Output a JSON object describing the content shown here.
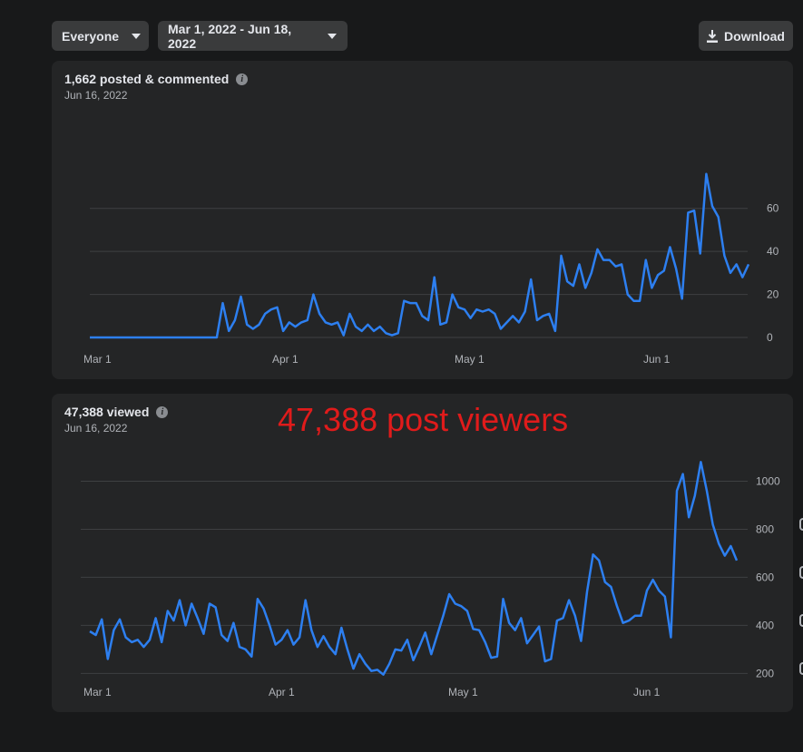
{
  "toolbar": {
    "audience": "Everyone",
    "date_range": "Mar 1, 2022 - Jun 18, 2022",
    "download_label": "Download"
  },
  "cards": [
    {
      "title": "1,662 posted & commented",
      "date": "Jun 16, 2022"
    },
    {
      "title": "47,388 viewed",
      "date": "Jun 16, 2022"
    }
  ],
  "annotation": "47,388 post viewers",
  "colors": {
    "background": "#18191a",
    "card": "#242526",
    "line": "#2d7ff0",
    "grid": "#3e4042",
    "annotation": "#e01b1b"
  },
  "chart_data": [
    {
      "type": "line",
      "title": "1,662 posted & commented",
      "x_tick_labels": [
        "Mar 1",
        "Apr 1",
        "May 1",
        "Jun 1"
      ],
      "y_ticks": [
        0,
        20,
        40,
        60
      ],
      "ylim": [
        0,
        78
      ],
      "grid": true,
      "series": [
        {
          "values": [
            0,
            0,
            0,
            0,
            0,
            0,
            0,
            0,
            0,
            0,
            0,
            0,
            0,
            0,
            0,
            0,
            0,
            0,
            0,
            0,
            0,
            0,
            16,
            3,
            8,
            19,
            6,
            4,
            6,
            11,
            13,
            14,
            3,
            7,
            5,
            7,
            8,
            20,
            11,
            7,
            6,
            7,
            1,
            11,
            5,
            3,
            6,
            3,
            5,
            2,
            1,
            2,
            17,
            16,
            16,
            10,
            8,
            28,
            6,
            7,
            20,
            14,
            13,
            9,
            13,
            12,
            13,
            11,
            4,
            7,
            10,
            7,
            12,
            27,
            8,
            10,
            11,
            3,
            38,
            26,
            24,
            34,
            23,
            30,
            41,
            36,
            36,
            33,
            34,
            20,
            17,
            17,
            36,
            23,
            29,
            31,
            42,
            32,
            18,
            58,
            59,
            39,
            76,
            61,
            56,
            38,
            30,
            34,
            28,
            34
          ]
        }
      ]
    },
    {
      "type": "line",
      "title": "47,388 viewed",
      "x_tick_labels": [
        "Mar 1",
        "Apr 1",
        "May 1",
        "Jun 1"
      ],
      "y_ticks": [
        200,
        400,
        600,
        800,
        1000
      ],
      "ylim": [
        190,
        1100
      ],
      "grid": true,
      "series": [
        {
          "values": [
            375,
            360,
            425,
            260,
            380,
            425,
            350,
            330,
            340,
            310,
            340,
            430,
            330,
            460,
            420,
            505,
            400,
            490,
            430,
            365,
            490,
            475,
            360,
            335,
            410,
            310,
            300,
            270,
            510,
            470,
            400,
            320,
            340,
            380,
            320,
            350,
            505,
            380,
            310,
            355,
            310,
            280,
            390,
            300,
            220,
            280,
            240,
            210,
            215,
            195,
            240,
            300,
            295,
            340,
            255,
            310,
            370,
            280,
            360,
            440,
            530,
            490,
            480,
            460,
            385,
            380,
            330,
            265,
            270,
            510,
            410,
            380,
            430,
            325,
            360,
            395,
            250,
            260,
            420,
            430,
            505,
            440,
            335,
            540,
            695,
            670,
            580,
            560,
            480,
            410,
            420,
            440,
            440,
            545,
            590,
            545,
            520,
            350,
            960,
            1030,
            850,
            940,
            1080,
            960,
            820,
            740,
            690,
            730,
            670
          ]
        }
      ]
    }
  ]
}
